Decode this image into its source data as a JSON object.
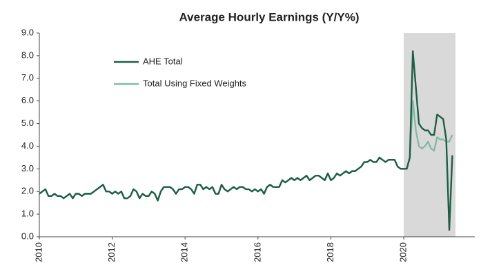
{
  "chart_data": {
    "type": "line",
    "title": "Average Hourly Earnings (Y/Y%)",
    "x": [
      2010,
      2010.083,
      2010.167,
      2010.25,
      2010.333,
      2010.417,
      2010.5,
      2010.583,
      2010.667,
      2010.75,
      2010.833,
      2010.917,
      2011,
      2011.083,
      2011.167,
      2011.25,
      2011.333,
      2011.417,
      2011.5,
      2011.583,
      2011.667,
      2011.75,
      2011.833,
      2011.917,
      2012,
      2012.083,
      2012.167,
      2012.25,
      2012.333,
      2012.417,
      2012.5,
      2012.583,
      2012.667,
      2012.75,
      2012.833,
      2012.917,
      2013,
      2013.083,
      2013.167,
      2013.25,
      2013.333,
      2013.417,
      2013.5,
      2013.583,
      2013.667,
      2013.75,
      2013.833,
      2013.917,
      2014,
      2014.083,
      2014.167,
      2014.25,
      2014.333,
      2014.417,
      2014.5,
      2014.583,
      2014.667,
      2014.75,
      2014.833,
      2014.917,
      2015,
      2015.083,
      2015.167,
      2015.25,
      2015.333,
      2015.417,
      2015.5,
      2015.583,
      2015.667,
      2015.75,
      2015.833,
      2015.917,
      2016,
      2016.083,
      2016.167,
      2016.25,
      2016.333,
      2016.417,
      2016.5,
      2016.583,
      2016.667,
      2016.75,
      2016.833,
      2016.917,
      2017,
      2017.083,
      2017.167,
      2017.25,
      2017.333,
      2017.417,
      2017.5,
      2017.583,
      2017.667,
      2017.75,
      2017.833,
      2017.917,
      2018,
      2018.083,
      2018.167,
      2018.25,
      2018.333,
      2018.417,
      2018.5,
      2018.583,
      2018.667,
      2018.75,
      2018.833,
      2018.917,
      2019,
      2019.083,
      2019.167,
      2019.25,
      2019.333,
      2019.417,
      2019.5,
      2019.583,
      2019.667,
      2019.75,
      2019.833,
      2019.917,
      2020,
      2020.083,
      2020.167,
      2020.25,
      2020.333,
      2020.417,
      2020.5,
      2020.583,
      2020.667,
      2020.75,
      2020.833,
      2020.917,
      2021,
      2021.083,
      2021.167,
      2021.25,
      2021.333
    ],
    "series": [
      {
        "name": "AHE Total",
        "color": "#1d5e44",
        "values": [
          1.9,
          2.0,
          2.1,
          1.8,
          1.8,
          1.9,
          1.8,
          1.8,
          1.7,
          1.8,
          1.9,
          1.7,
          1.9,
          1.9,
          1.8,
          1.9,
          1.9,
          1.9,
          2.0,
          2.1,
          2.2,
          2.3,
          2.0,
          2.0,
          1.9,
          2.0,
          1.9,
          2.0,
          1.7,
          1.7,
          1.8,
          2.1,
          2.0,
          1.7,
          1.9,
          1.8,
          1.8,
          2.0,
          1.9,
          1.6,
          2.0,
          2.2,
          2.2,
          2.2,
          2.1,
          1.9,
          2.1,
          2.1,
          2.2,
          2.2,
          2.1,
          1.9,
          2.3,
          2.3,
          2.1,
          2.2,
          2.1,
          2.2,
          1.9,
          1.9,
          2.3,
          2.1,
          2.0,
          2.1,
          2.2,
          2.1,
          2.2,
          2.2,
          2.1,
          2.1,
          2.0,
          2.1,
          2.0,
          2.1,
          1.9,
          2.2,
          2.3,
          2.2,
          2.2,
          2.2,
          2.5,
          2.4,
          2.5,
          2.6,
          2.5,
          2.6,
          2.5,
          2.6,
          2.7,
          2.5,
          2.6,
          2.7,
          2.7,
          2.6,
          2.5,
          2.8,
          2.5,
          2.6,
          2.8,
          2.7,
          2.8,
          2.9,
          2.8,
          2.9,
          2.9,
          3.0,
          3.1,
          3.3,
          3.3,
          3.4,
          3.3,
          3.3,
          3.5,
          3.4,
          3.3,
          3.4,
          3.4,
          3.4,
          3.1,
          3.0,
          3.0,
          3.0,
          3.5,
          8.2,
          6.6,
          5.0,
          4.8,
          4.7,
          4.7,
          4.5,
          4.5,
          5.4,
          5.3,
          5.2,
          4.3,
          0.3,
          3.6
        ]
      },
      {
        "name": "Total Using Fixed Weights",
        "color": "#86b9a5",
        "values": [
          1.9,
          2.0,
          2.1,
          1.8,
          1.8,
          1.9,
          1.8,
          1.8,
          1.7,
          1.8,
          1.9,
          1.7,
          1.9,
          1.9,
          1.8,
          1.9,
          1.9,
          1.9,
          2.0,
          2.1,
          2.2,
          2.3,
          2.0,
          2.0,
          1.9,
          2.0,
          1.9,
          2.0,
          1.7,
          1.7,
          1.8,
          2.1,
          2.0,
          1.7,
          1.9,
          1.8,
          1.8,
          2.0,
          1.9,
          1.6,
          2.0,
          2.2,
          2.2,
          2.2,
          2.1,
          1.9,
          2.1,
          2.1,
          2.2,
          2.2,
          2.1,
          1.9,
          2.3,
          2.3,
          2.1,
          2.2,
          2.1,
          2.2,
          1.9,
          1.9,
          2.3,
          2.1,
          2.0,
          2.1,
          2.2,
          2.1,
          2.2,
          2.2,
          2.1,
          2.1,
          2.0,
          2.1,
          2.0,
          2.1,
          1.9,
          2.2,
          2.3,
          2.2,
          2.2,
          2.2,
          2.5,
          2.4,
          2.5,
          2.6,
          2.5,
          2.6,
          2.5,
          2.6,
          2.7,
          2.5,
          2.6,
          2.7,
          2.7,
          2.6,
          2.5,
          2.8,
          2.5,
          2.6,
          2.8,
          2.7,
          2.8,
          2.9,
          2.8,
          2.9,
          2.9,
          3.0,
          3.1,
          3.3,
          3.3,
          3.4,
          3.3,
          3.3,
          3.5,
          3.4,
          3.3,
          3.4,
          3.4,
          3.4,
          3.1,
          3.0,
          3.0,
          3.0,
          3.5,
          6.0,
          4.7,
          4.0,
          3.9,
          4.0,
          4.2,
          3.9,
          3.8,
          4.4,
          4.3,
          4.3,
          4.2,
          4.2,
          4.5
        ]
      }
    ],
    "shaded_x": [
      2020,
      2021.42
    ],
    "shade_color": "#d9d9d9",
    "xlim": [
      2010,
      2021.95
    ],
    "xticks": [
      2010,
      2012,
      2014,
      2016,
      2018,
      2020
    ],
    "ylim": [
      0,
      9
    ],
    "yticks": [
      {
        "value": 0,
        "label": "0.0"
      },
      {
        "value": 1,
        "label": "1.0"
      },
      {
        "value": 2,
        "label": "2.0"
      },
      {
        "value": 3,
        "label": "3.0"
      },
      {
        "value": 4,
        "label": "4.0"
      },
      {
        "value": 5,
        "label": "5.0"
      },
      {
        "value": 6,
        "label": "6.0"
      },
      {
        "value": 7,
        "label": "7.0"
      },
      {
        "value": 8,
        "label": "8.0"
      },
      {
        "value": 9,
        "label": "9.0"
      }
    ],
    "grid": false,
    "legend": "upper-left"
  }
}
